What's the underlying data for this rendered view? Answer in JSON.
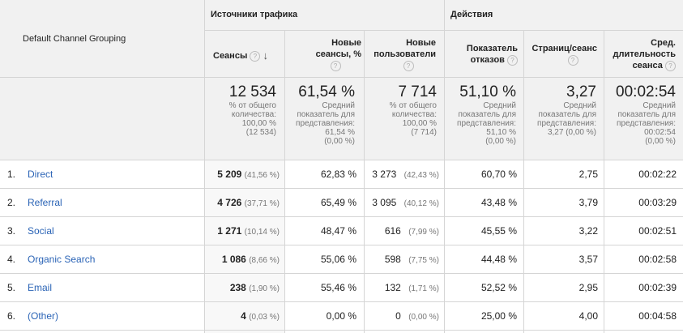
{
  "header": {
    "dimension_label": "Default Channel Grouping",
    "group_traffic": "Источники трафика",
    "group_actions": "Действия",
    "help_glyph": "?",
    "sort_glyph": "↓",
    "columns": {
      "sessions": "Сеансы",
      "new_sessions_l1": "Новые",
      "new_sessions_l2": "сеансы, %",
      "new_users_l1": "Новые",
      "new_users_l2": "пользователи",
      "bounce_l1": "Показатель",
      "bounce_l2": "отказов",
      "pages": "Страниц/сеанс",
      "duration_l1": "Сред.",
      "duration_l2": "длительность",
      "duration_l3": "сеанса"
    }
  },
  "totals": {
    "sessions": {
      "value": "12 534",
      "l1": "% от общего",
      "l2": "количества:",
      "l3": "100,00 %",
      "l4": "(12 534)"
    },
    "new_sessions": {
      "value": "61,54 %",
      "l1": "Средний",
      "l2": "показатель для",
      "l3": "представления:",
      "l4": "61,54 %",
      "l5": "(0,00 %)"
    },
    "new_users": {
      "value": "7 714",
      "l1": "% от общего",
      "l2": "количества:",
      "l3": "100,00 %",
      "l4": "(7 714)"
    },
    "bounce": {
      "value": "51,10 %",
      "l1": "Средний",
      "l2": "показатель для",
      "l3": "представления:",
      "l4": "51,10 %",
      "l5": "(0,00 %)"
    },
    "pages": {
      "value": "3,27",
      "l1": "Средний",
      "l2": "показатель для",
      "l3": "представления:",
      "l4": "3,27 (0,00 %)"
    },
    "duration": {
      "value": "00:02:54",
      "l1": "Средний",
      "l2": "показатель для",
      "l3": "представления:",
      "l4": "00:02:54",
      "l5": "(0,00 %)"
    }
  },
  "rows": [
    {
      "idx": "1.",
      "channel": "Direct",
      "sessions": "5 209",
      "sessions_pct": "(41,56 %)",
      "new_sessions": "62,83 %",
      "new_users": "3 273",
      "new_users_pct": "(42,43 %)",
      "bounce": "60,70 %",
      "pages": "2,75",
      "duration": "00:02:22"
    },
    {
      "idx": "2.",
      "channel": "Referral",
      "sessions": "4 726",
      "sessions_pct": "(37,71 %)",
      "new_sessions": "65,49 %",
      "new_users": "3 095",
      "new_users_pct": "(40,12 %)",
      "bounce": "43,48 %",
      "pages": "3,79",
      "duration": "00:03:29"
    },
    {
      "idx": "3.",
      "channel": "Social",
      "sessions": "1 271",
      "sessions_pct": "(10,14 %)",
      "new_sessions": "48,47 %",
      "new_users": "616",
      "new_users_pct": "(7,99 %)",
      "bounce": "45,55 %",
      "pages": "3,22",
      "duration": "00:02:51"
    },
    {
      "idx": "4.",
      "channel": "Organic Search",
      "sessions": "1 086",
      "sessions_pct": "(8,66 %)",
      "new_sessions": "55,06 %",
      "new_users": "598",
      "new_users_pct": "(7,75 %)",
      "bounce": "44,48 %",
      "pages": "3,57",
      "duration": "00:02:58"
    },
    {
      "idx": "5.",
      "channel": "Email",
      "sessions": "238",
      "sessions_pct": "(1,90 %)",
      "new_sessions": "55,46 %",
      "new_users": "132",
      "new_users_pct": "(1,71 %)",
      "bounce": "52,52 %",
      "pages": "2,95",
      "duration": "00:02:39"
    },
    {
      "idx": "6.",
      "channel": "(Other)",
      "sessions": "4",
      "sessions_pct": "(0,03 %)",
      "new_sessions": "0,00 %",
      "new_users": "0",
      "new_users_pct": "(0,00 %)",
      "bounce": "25,00 %",
      "pages": "4,00",
      "duration": "00:04:58"
    }
  ]
}
